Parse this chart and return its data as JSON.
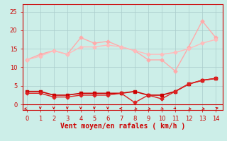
{
  "bg_color": "#cceee8",
  "grid_color": "#aacccc",
  "xlabel": "Vent moyen/en rafales ( km/h )",
  "xlabel_color": "#cc0000",
  "xlabel_fontsize": 7,
  "xlim": [
    -0.3,
    14.5
  ],
  "ylim": [
    -1.5,
    27
  ],
  "yticks": [
    0,
    5,
    10,
    15,
    20,
    25
  ],
  "xticks": [
    0,
    1,
    2,
    3,
    4,
    5,
    6,
    7,
    8,
    9,
    10,
    11,
    12,
    13,
    14
  ],
  "line_rafales": {
    "x": [
      0,
      1,
      2,
      3,
      4,
      5,
      6,
      7,
      8,
      9,
      10,
      11,
      12,
      13,
      14
    ],
    "y": [
      12.0,
      13.5,
      14.5,
      13.5,
      18.0,
      16.5,
      17.0,
      15.5,
      14.5,
      12.0,
      12.0,
      9.0,
      15.5,
      22.5,
      18.0
    ],
    "color": "#ffaaaa",
    "marker": "D",
    "markersize": 2.5,
    "linewidth": 1.0
  },
  "line_avg_upper": {
    "x": [
      0,
      1,
      2,
      3,
      4,
      5,
      6,
      7,
      8,
      9,
      10,
      11,
      12,
      13,
      14
    ],
    "y": [
      12.0,
      13.0,
      14.5,
      13.5,
      15.5,
      15.5,
      16.0,
      15.5,
      14.5,
      13.5,
      13.5,
      14.0,
      15.0,
      16.5,
      17.5
    ],
    "color": "#ffbbbb",
    "marker": "D",
    "markersize": 2.5,
    "linewidth": 1.0
  },
  "line_wind_mean": {
    "x": [
      0,
      1,
      2,
      3,
      4,
      5,
      6,
      7,
      8,
      9,
      10,
      11,
      12,
      13,
      14
    ],
    "y": [
      3.5,
      3.5,
      2.5,
      2.5,
      3.0,
      3.0,
      3.0,
      3.0,
      3.5,
      2.5,
      2.5,
      3.5,
      5.5,
      6.5,
      7.0
    ],
    "color": "#cc0000",
    "marker": "s",
    "markersize": 2.5,
    "linewidth": 1.2
  },
  "line_wind_low": {
    "x": [
      0,
      1,
      2,
      3,
      4,
      5,
      6,
      7,
      8,
      9,
      10,
      11,
      12,
      13,
      14
    ],
    "y": [
      3.0,
      3.0,
      2.0,
      2.0,
      2.5,
      2.5,
      2.5,
      3.0,
      0.5,
      2.5,
      1.5,
      3.5,
      5.5,
      6.5,
      7.0
    ],
    "color": "#dd2222",
    "marker": "D",
    "markersize": 2.5,
    "linewidth": 1.0
  },
  "arrow_color": "#cc0000",
  "tick_color": "#cc0000",
  "tick_fontsize": 6,
  "spine_color": "#cc0000"
}
